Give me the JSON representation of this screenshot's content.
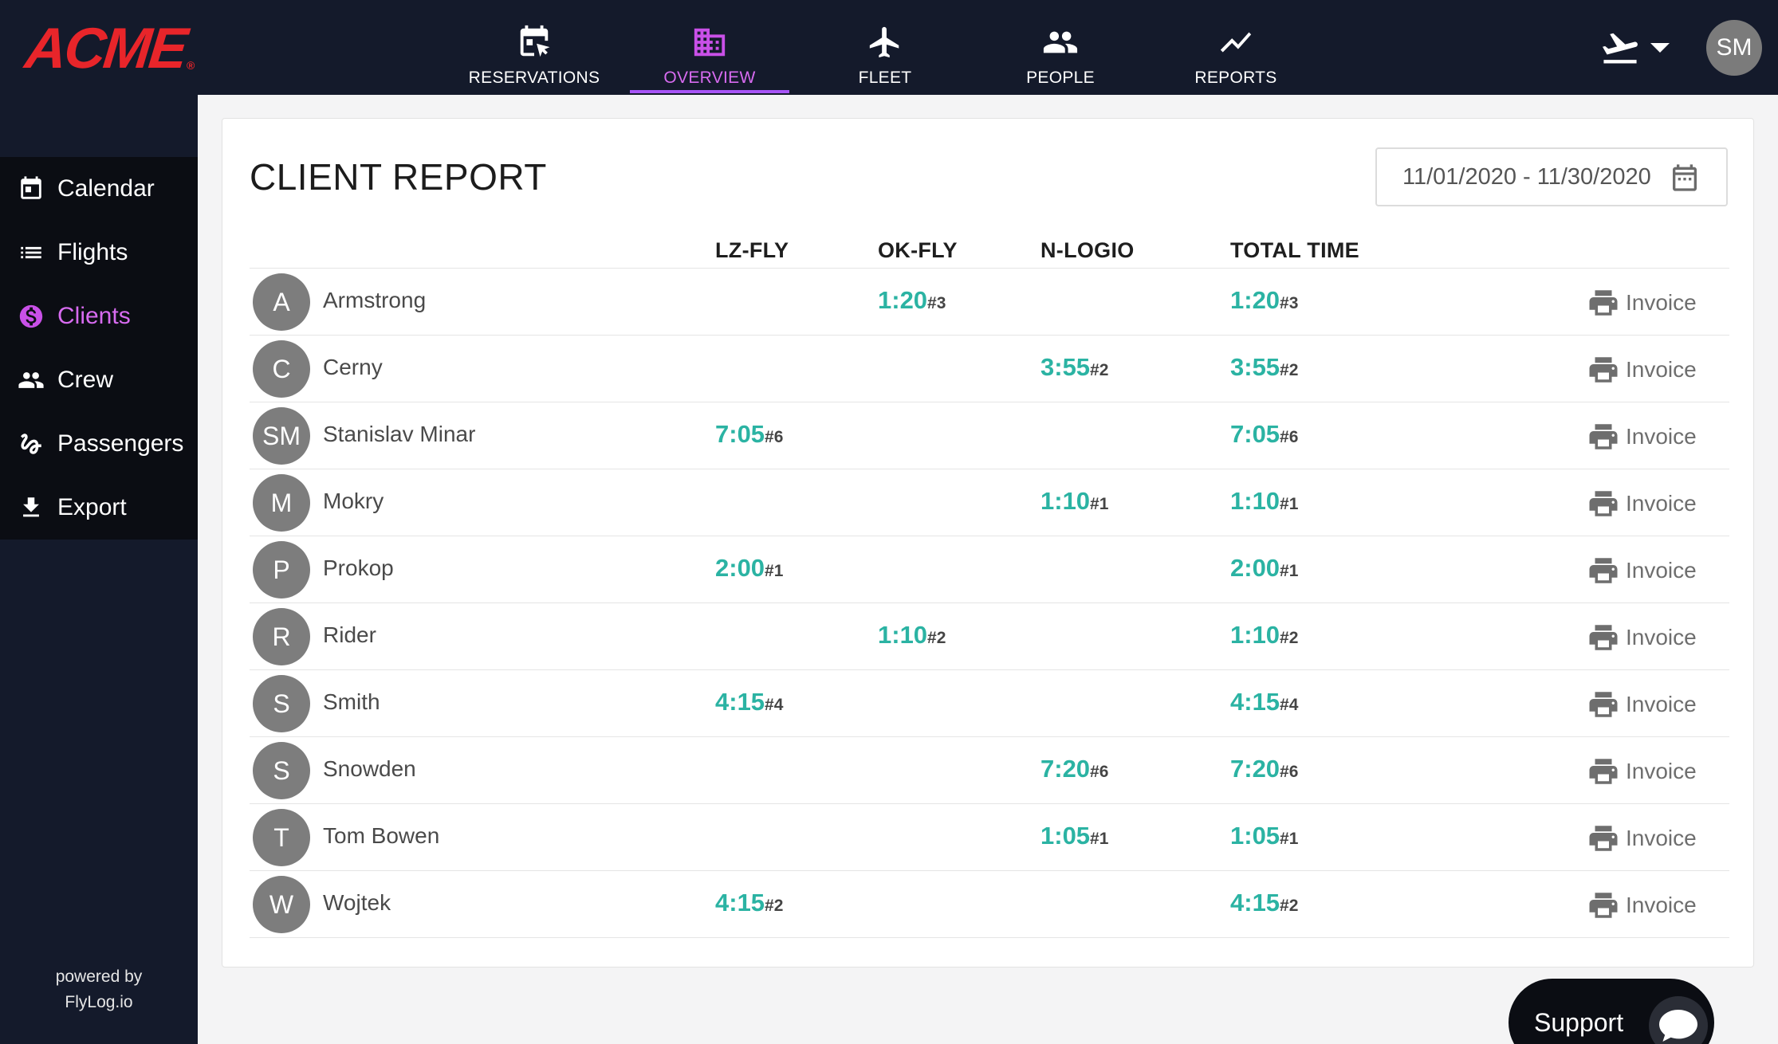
{
  "brand": {
    "logo_text": "ACME",
    "logo_mark": "®",
    "accent": "#c950e8",
    "value_color": "#2bb3a3",
    "topbar_bg": "#141a2b"
  },
  "nav": [
    {
      "label": "RESERVATIONS",
      "icon": "calendar-edit-icon",
      "active": false
    },
    {
      "label": "OVERVIEW",
      "icon": "building-icon",
      "active": true
    },
    {
      "label": "FLEET",
      "icon": "airplane-icon",
      "active": false
    },
    {
      "label": "PEOPLE",
      "icon": "people-icon",
      "active": false
    },
    {
      "label": "REPORTS",
      "icon": "trending-icon",
      "active": false
    }
  ],
  "user": {
    "initials": "SM"
  },
  "sidebar": {
    "items": [
      {
        "label": "Calendar",
        "icon": "calendar-icon",
        "active": false
      },
      {
        "label": "Flights",
        "icon": "list-icon",
        "active": false
      },
      {
        "label": "Clients",
        "icon": "dollar-icon",
        "active": true
      },
      {
        "label": "Crew",
        "icon": "people-icon",
        "active": false
      },
      {
        "label": "Passengers",
        "icon": "seat-icon",
        "active": false
      },
      {
        "label": "Export",
        "icon": "download-icon",
        "active": false
      }
    ],
    "powered_by": "powered by",
    "powered_by_name": "FlyLog.io"
  },
  "report": {
    "title": "CLIENT REPORT",
    "date_range": "11/01/2020 - 11/30/2020",
    "columns": [
      "LZ-FLY",
      "OK-FLY",
      "N-LOGIO",
      "TOTAL TIME"
    ],
    "invoice_label": "Invoice",
    "rows": [
      {
        "initials": "A",
        "name": "Armstrong",
        "lz": "",
        "lz_n": "",
        "ok": "1:20",
        "ok_n": "#3",
        "nl": "",
        "nl_n": "",
        "total": "1:20",
        "total_n": "#3"
      },
      {
        "initials": "C",
        "name": "Cerny",
        "lz": "",
        "lz_n": "",
        "ok": "",
        "ok_n": "",
        "nl": "3:55",
        "nl_n": "#2",
        "total": "3:55",
        "total_n": "#2"
      },
      {
        "initials": "SM",
        "name": "Stanislav Minar",
        "lz": "7:05",
        "lz_n": "#6",
        "ok": "",
        "ok_n": "",
        "nl": "",
        "nl_n": "",
        "total": "7:05",
        "total_n": "#6"
      },
      {
        "initials": "M",
        "name": "Mokry",
        "lz": "",
        "lz_n": "",
        "ok": "",
        "ok_n": "",
        "nl": "1:10",
        "nl_n": "#1",
        "total": "1:10",
        "total_n": "#1"
      },
      {
        "initials": "P",
        "name": "Prokop",
        "lz": "2:00",
        "lz_n": "#1",
        "ok": "",
        "ok_n": "",
        "nl": "",
        "nl_n": "",
        "total": "2:00",
        "total_n": "#1"
      },
      {
        "initials": "R",
        "name": "Rider",
        "lz": "",
        "lz_n": "",
        "ok": "1:10",
        "ok_n": "#2",
        "nl": "",
        "nl_n": "",
        "total": "1:10",
        "total_n": "#2"
      },
      {
        "initials": "S",
        "name": "Smith",
        "lz": "4:15",
        "lz_n": "#4",
        "ok": "",
        "ok_n": "",
        "nl": "",
        "nl_n": "",
        "total": "4:15",
        "total_n": "#4"
      },
      {
        "initials": "S",
        "name": "Snowden",
        "lz": "",
        "lz_n": "",
        "ok": "",
        "ok_n": "",
        "nl": "7:20",
        "nl_n": "#6",
        "total": "7:20",
        "total_n": "#6"
      },
      {
        "initials": "T",
        "name": "Tom Bowen",
        "lz": "",
        "lz_n": "",
        "ok": "",
        "ok_n": "",
        "nl": "1:05",
        "nl_n": "#1",
        "total": "1:05",
        "total_n": "#1"
      },
      {
        "initials": "W",
        "name": "Wojtek",
        "lz": "4:15",
        "lz_n": "#2",
        "ok": "",
        "ok_n": "",
        "nl": "",
        "nl_n": "",
        "total": "4:15",
        "total_n": "#2"
      }
    ]
  },
  "support": {
    "label": "Support",
    "icon": "chat-bubble-icon"
  }
}
